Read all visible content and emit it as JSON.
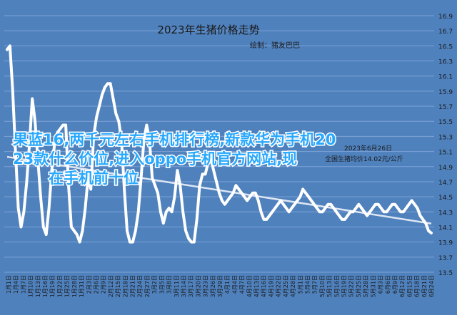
{
  "chart_data": {
    "type": "line",
    "title": "2023年生猪价格走势",
    "subtitle": "绘制：猪友巴巴",
    "xlabel": "",
    "ylabel": "",
    "ylim": [
      13.5,
      16.9
    ],
    "yticks": [
      16.9,
      16.7,
      16.5,
      16.3,
      16.1,
      15.9,
      15.7,
      15.5,
      15.3,
      15.1,
      14.9,
      14.7,
      14.5,
      14.3,
      14.1,
      13.9,
      13.7,
      13.5
    ],
    "x_tick_labels": [
      "1月1日",
      "1月4日",
      "1月7日",
      "1月10日",
      "1月13日",
      "1月16日",
      "1月19日",
      "1月22日",
      "1月25日",
      "1月28日",
      "1月31日",
      "2月3日",
      "2月6日",
      "2月9日",
      "2月12日",
      "2月15日",
      "2月18日",
      "2月21日",
      "2月24日",
      "2月27日",
      "3月2日",
      "3月5日",
      "3月8日",
      "3月11日",
      "3月14日",
      "3月17日",
      "3月20日",
      "3月23日",
      "3月26日",
      "3月29日",
      "4月1日",
      "4月4日",
      "4月7日",
      "4月10日",
      "4月13日",
      "4月16日",
      "4月19日",
      "4月22日",
      "4月25日",
      "4月28日",
      "5月1日",
      "5月4日",
      "5月7日",
      "5月10日",
      "5月13日",
      "5月16日",
      "5月19日",
      "5月22日",
      "5月25日",
      "5月28日",
      "5月31日",
      "6月3日",
      "6月6日",
      "6月9日",
      "6月12日",
      "6月15日",
      "6月18日",
      "6月21日",
      "6月24日"
    ],
    "grid": true,
    "trendline": true,
    "series": [
      {
        "name": "",
        "color": "#ffffff",
        "values": [
          16.45,
          16.5,
          15.9,
          15.1,
          14.35,
          14.1,
          14.3,
          14.7,
          15.2,
          15.8,
          15.5,
          15.0,
          14.5,
          14.1,
          14.0,
          14.35,
          14.85,
          15.2,
          15.35,
          15.4,
          15.45,
          15.45,
          14.65,
          14.1,
          14.05,
          14.0,
          13.9,
          14.05,
          14.35,
          14.75,
          14.6,
          15.3,
          15.55,
          15.7,
          15.85,
          15.95,
          16.0,
          16.0,
          15.8,
          15.6,
          15.5,
          15.25,
          14.6,
          14.05,
          13.9,
          13.9,
          14.05,
          14.3,
          14.75,
          15.25,
          15.45,
          15.25,
          14.75,
          14.65,
          14.55,
          14.3,
          14.15,
          14.3,
          14.35,
          14.3,
          14.5,
          14.85,
          14.65,
          14.3,
          14.05,
          13.95,
          13.9,
          13.9,
          14.2,
          14.65,
          14.8,
          14.8,
          14.95,
          15.0,
          14.85,
          14.7,
          14.55,
          14.45,
          14.4,
          14.45,
          14.5,
          14.55,
          14.65,
          14.6,
          14.55,
          14.5,
          14.45,
          14.5,
          14.55,
          14.55,
          14.45,
          14.3,
          14.2,
          14.2,
          14.25,
          14.3,
          14.35,
          14.4,
          14.45,
          14.4,
          14.35,
          14.3,
          14.35,
          14.4,
          14.45,
          14.5,
          14.6,
          14.55,
          14.5,
          14.45,
          14.4,
          14.35,
          14.3,
          14.3,
          14.35,
          14.4,
          14.4,
          14.35,
          14.3,
          14.25,
          14.2,
          14.2,
          14.25,
          14.3,
          14.3,
          14.35,
          14.4,
          14.35,
          14.3,
          14.25,
          14.3,
          14.35,
          14.4,
          14.4,
          14.35,
          14.3,
          14.3,
          14.35,
          14.4,
          14.4,
          14.35,
          14.3,
          14.3,
          14.35,
          14.4,
          14.45,
          14.4,
          14.35,
          14.25,
          14.2,
          14.15,
          14.05,
          14.02
        ]
      }
    ],
    "annotations": [
      "2023年6月26日",
      "全国生猪均价14.02元/公斤"
    ],
    "overlay_text": [
      "果蓝16,两千元左右手机排行榜,新款华为手机2023款什么价位,进入oppo手机官方网站,现在手机前十位"
    ]
  }
}
